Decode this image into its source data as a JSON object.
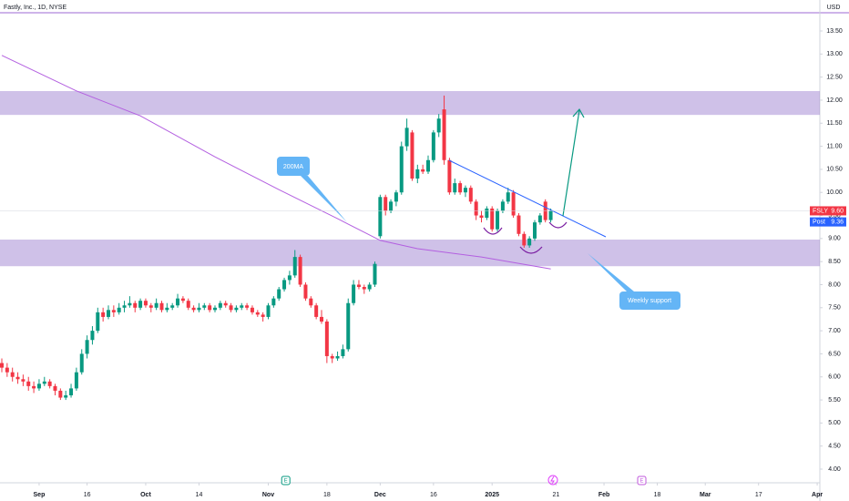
{
  "chart_data": {
    "type": "candlestick",
    "title": "Fastly, Inc., 1D, NYSE",
    "currency": "USD",
    "up_color": "#089981",
    "down_color": "#f23645",
    "xlim": [
      -0.34,
      153.5
    ],
    "ylim": [
      3.704,
      13.895
    ],
    "grid": false,
    "xticks": [
      {
        "value": 7,
        "label": "Sep"
      },
      {
        "value": 16,
        "label": "16"
      },
      {
        "value": 27,
        "label": "Oct"
      },
      {
        "value": 37,
        "label": "14"
      },
      {
        "value": 50,
        "label": "Nov"
      },
      {
        "value": 61,
        "label": "18"
      },
      {
        "value": 71,
        "label": "Dec"
      },
      {
        "value": 81,
        "label": "16"
      },
      {
        "value": 92,
        "label": "2025"
      },
      {
        "value": 104,
        "label": "21"
      },
      {
        "value": 113,
        "label": "Feb"
      },
      {
        "value": 123,
        "label": "18"
      },
      {
        "value": 132,
        "label": "Mar"
      },
      {
        "value": 142,
        "label": "17"
      },
      {
        "value": 153,
        "label": "Apr"
      }
    ],
    "yticks": [
      {
        "value": 13.5,
        "label": "13.50"
      },
      {
        "value": 13,
        "label": "13.00"
      },
      {
        "value": 12.5,
        "label": "12.50"
      },
      {
        "value": 12,
        "label": "12.00"
      },
      {
        "value": 11.5,
        "label": "11.50"
      },
      {
        "value": 11,
        "label": "11.00"
      },
      {
        "value": 10.5,
        "label": "10.50"
      },
      {
        "value": 10,
        "label": "10.00"
      },
      {
        "value": 9.5,
        "label": "9.50"
      },
      {
        "value": 9,
        "label": "9.00"
      },
      {
        "value": 8.5,
        "label": "8.50"
      },
      {
        "value": 8,
        "label": "8.00"
      },
      {
        "value": 7.5,
        "label": "7.50"
      },
      {
        "value": 7,
        "label": "7.00"
      },
      {
        "value": 6.5,
        "label": "6.50"
      },
      {
        "value": 6,
        "label": "6.00"
      },
      {
        "value": 5.5,
        "label": "5.50"
      },
      {
        "value": 5,
        "label": "5.00"
      },
      {
        "value": 4.5,
        "label": "4.50"
      },
      {
        "value": 4,
        "label": "4.00"
      }
    ],
    "ohlc": [
      [
        6.3,
        6.4,
        6.1,
        6.2
      ],
      [
        6.2,
        6.3,
        6.0,
        6.1
      ],
      [
        6.1,
        6.2,
        5.9,
        6.0
      ],
      [
        6.0,
        6.1,
        5.85,
        5.95
      ],
      [
        5.95,
        6.05,
        5.8,
        5.9
      ],
      [
        5.9,
        6.0,
        5.7,
        5.8
      ],
      [
        5.8,
        5.9,
        5.65,
        5.75
      ],
      [
        5.75,
        5.95,
        5.7,
        5.85
      ],
      [
        5.85,
        6.0,
        5.8,
        5.9
      ],
      [
        5.9,
        5.95,
        5.75,
        5.8
      ],
      [
        5.8,
        5.85,
        5.6,
        5.7
      ],
      [
        5.7,
        5.75,
        5.5,
        5.55
      ],
      [
        5.55,
        5.7,
        5.5,
        5.6
      ],
      [
        5.6,
        5.85,
        5.55,
        5.75
      ],
      [
        5.75,
        6.2,
        5.7,
        6.1
      ],
      [
        6.1,
        6.6,
        6.05,
        6.5
      ],
      [
        6.5,
        6.9,
        6.4,
        6.8
      ],
      [
        6.8,
        7.1,
        6.7,
        7.0
      ],
      [
        7.0,
        7.5,
        6.95,
        7.4
      ],
      [
        7.4,
        7.5,
        7.2,
        7.3
      ],
      [
        7.3,
        7.55,
        7.25,
        7.45
      ],
      [
        7.45,
        7.55,
        7.3,
        7.4
      ],
      [
        7.4,
        7.6,
        7.35,
        7.5
      ],
      [
        7.5,
        7.65,
        7.4,
        7.55
      ],
      [
        7.55,
        7.75,
        7.5,
        7.6
      ],
      [
        7.6,
        7.65,
        7.4,
        7.5
      ],
      [
        7.5,
        7.7,
        7.45,
        7.65
      ],
      [
        7.65,
        7.7,
        7.5,
        7.55
      ],
      [
        7.55,
        7.6,
        7.4,
        7.5
      ],
      [
        7.5,
        7.7,
        7.45,
        7.6
      ],
      [
        7.6,
        7.65,
        7.4,
        7.45
      ],
      [
        7.45,
        7.6,
        7.4,
        7.5
      ],
      [
        7.5,
        7.6,
        7.45,
        7.55
      ],
      [
        7.55,
        7.8,
        7.5,
        7.7
      ],
      [
        7.7,
        7.75,
        7.6,
        7.65
      ],
      [
        7.65,
        7.7,
        7.45,
        7.5
      ],
      [
        7.5,
        7.55,
        7.4,
        7.45
      ],
      [
        7.45,
        7.6,
        7.4,
        7.5
      ],
      [
        7.5,
        7.6,
        7.45,
        7.55
      ],
      [
        7.55,
        7.6,
        7.4,
        7.45
      ],
      [
        7.45,
        7.55,
        7.4,
        7.5
      ],
      [
        7.5,
        7.65,
        7.45,
        7.6
      ],
      [
        7.6,
        7.65,
        7.5,
        7.55
      ],
      [
        7.55,
        7.6,
        7.4,
        7.45
      ],
      [
        7.45,
        7.55,
        7.4,
        7.5
      ],
      [
        7.5,
        7.6,
        7.45,
        7.55
      ],
      [
        7.55,
        7.6,
        7.45,
        7.5
      ],
      [
        7.5,
        7.55,
        7.35,
        7.4
      ],
      [
        7.4,
        7.45,
        7.3,
        7.35
      ],
      [
        7.35,
        7.4,
        7.2,
        7.3
      ],
      [
        7.3,
        7.6,
        7.25,
        7.55
      ],
      [
        7.55,
        7.75,
        7.5,
        7.7
      ],
      [
        7.7,
        7.95,
        7.65,
        7.9
      ],
      [
        7.9,
        8.15,
        7.85,
        8.1
      ],
      [
        8.1,
        8.3,
        8.0,
        8.2
      ],
      [
        8.2,
        8.75,
        8.15,
        8.6
      ],
      [
        8.6,
        8.65,
        7.95,
        8.0
      ],
      [
        8.0,
        8.05,
        7.65,
        7.7
      ],
      [
        7.7,
        7.75,
        7.5,
        7.55
      ],
      [
        7.55,
        7.6,
        7.25,
        7.3
      ],
      [
        7.3,
        7.45,
        7.15,
        7.2
      ],
      [
        7.2,
        7.25,
        6.3,
        6.45
      ],
      [
        6.45,
        6.5,
        6.3,
        6.4
      ],
      [
        6.4,
        6.55,
        6.35,
        6.45
      ],
      [
        6.45,
        6.7,
        6.4,
        6.6
      ],
      [
        6.6,
        7.7,
        6.55,
        7.6
      ],
      [
        7.6,
        8.1,
        7.55,
        8.0
      ],
      [
        8.0,
        8.1,
        7.9,
        7.95
      ],
      [
        7.95,
        8.0,
        7.8,
        7.9
      ],
      [
        7.9,
        8.05,
        7.85,
        8.0
      ],
      [
        8.0,
        8.5,
        7.95,
        8.45
      ],
      [
        9.05,
        9.95,
        9.0,
        9.9
      ],
      [
        9.9,
        9.95,
        9.5,
        9.6
      ],
      [
        9.6,
        9.85,
        9.55,
        9.8
      ],
      [
        9.8,
        10.05,
        9.7,
        10.0
      ],
      [
        10.0,
        11.1,
        9.95,
        11.0
      ],
      [
        11.0,
        11.6,
        10.9,
        11.4
      ],
      [
        11.3,
        11.35,
        10.25,
        10.3
      ],
      [
        10.3,
        10.6,
        10.2,
        10.5
      ],
      [
        10.5,
        10.6,
        10.4,
        10.45
      ],
      [
        10.45,
        10.8,
        10.4,
        10.7
      ],
      [
        10.7,
        11.35,
        10.65,
        11.3
      ],
      [
        11.3,
        11.7,
        11.2,
        11.6
      ],
      [
        11.8,
        12.1,
        10.6,
        10.7
      ],
      [
        10.7,
        10.75,
        9.95,
        10.0
      ],
      [
        10.0,
        10.3,
        9.95,
        10.2
      ],
      [
        10.2,
        10.25,
        9.95,
        10.0
      ],
      [
        10.0,
        10.15,
        9.9,
        10.1
      ],
      [
        10.1,
        10.15,
        9.75,
        9.8
      ],
      [
        9.8,
        9.85,
        9.4,
        9.5
      ],
      [
        9.5,
        9.6,
        9.35,
        9.45
      ],
      [
        9.45,
        9.7,
        9.4,
        9.65
      ],
      [
        9.65,
        9.7,
        9.15,
        9.2
      ],
      [
        9.2,
        9.65,
        9.15,
        9.6
      ],
      [
        9.6,
        9.85,
        9.55,
        9.8
      ],
      [
        9.8,
        10.1,
        9.75,
        10.0
      ],
      [
        10.0,
        10.05,
        9.45,
        9.5
      ],
      [
        9.5,
        9.55,
        9.05,
        9.1
      ],
      [
        9.1,
        9.15,
        8.8,
        8.85
      ],
      [
        8.85,
        9.05,
        8.8,
        9.0
      ],
      [
        9.0,
        9.4,
        8.95,
        9.35
      ],
      [
        9.35,
        9.55,
        9.3,
        9.5
      ],
      [
        9.8,
        9.85,
        9.35,
        9.4
      ],
      [
        9.4,
        9.65,
        9.35,
        9.6
      ]
    ],
    "ma": {
      "color": "#b35fe0",
      "x": [
        0,
        14,
        26,
        40,
        52,
        63,
        71,
        78,
        90,
        103
      ],
      "values": [
        12.97,
        12.2,
        11.66,
        10.77,
        10.06,
        9.43,
        8.96,
        8.78,
        8.6,
        8.34
      ]
    },
    "zones": [
      {
        "top": 12.197,
        "bottom": 11.68,
        "color": "rgba(149,117,205,0.45)"
      },
      {
        "top": 8.977,
        "bottom": 8.4,
        "color": "rgba(149,117,205,0.45)"
      }
    ],
    "price_labels": [
      {
        "name": "FSLY",
        "value": 9.6,
        "label": "9.60",
        "color": "#f23645"
      },
      {
        "name": "Post",
        "value": 9.36,
        "label": "9.36",
        "color": "#2962ff"
      }
    ],
    "events": [
      {
        "label": "E",
        "x": 53.2
      },
      {
        "label": "E",
        "x": 120
      }
    ],
    "annotations": [
      "200MA",
      "Weekly support"
    ]
  }
}
